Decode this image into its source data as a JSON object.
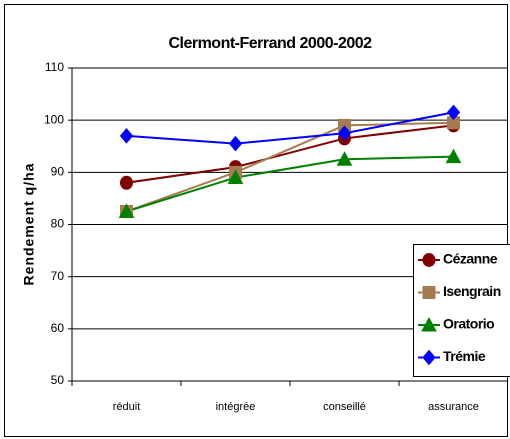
{
  "chart_data": {
    "type": "line",
    "title": "Clermont-Ferrand 2000-2002",
    "y_label": "Rendement q/ha",
    "categories": [
      "réduit",
      "intégrée",
      "conseillé",
      "assurance"
    ],
    "series": [
      {
        "name": "Cézanne",
        "color": "#800000",
        "marker": "circle",
        "values": [
          88,
          91,
          96.5,
          99
        ]
      },
      {
        "name": "Isengrain",
        "color": "#a57c52",
        "marker": "square",
        "values": [
          82.5,
          90,
          99,
          99.5
        ]
      },
      {
        "name": "Oratorio",
        "color": "#008000",
        "marker": "triangle",
        "values": [
          82.5,
          89,
          92.5,
          93
        ]
      },
      {
        "name": "Trémie",
        "color": "#0000ff",
        "marker": "diamond",
        "values": [
          97,
          95.5,
          97.5,
          101.5
        ]
      }
    ],
    "ylim": [
      50,
      110
    ],
    "yticks": [
      50,
      60,
      70,
      80,
      90,
      100,
      110
    ],
    "grid": true,
    "legend": "right"
  }
}
